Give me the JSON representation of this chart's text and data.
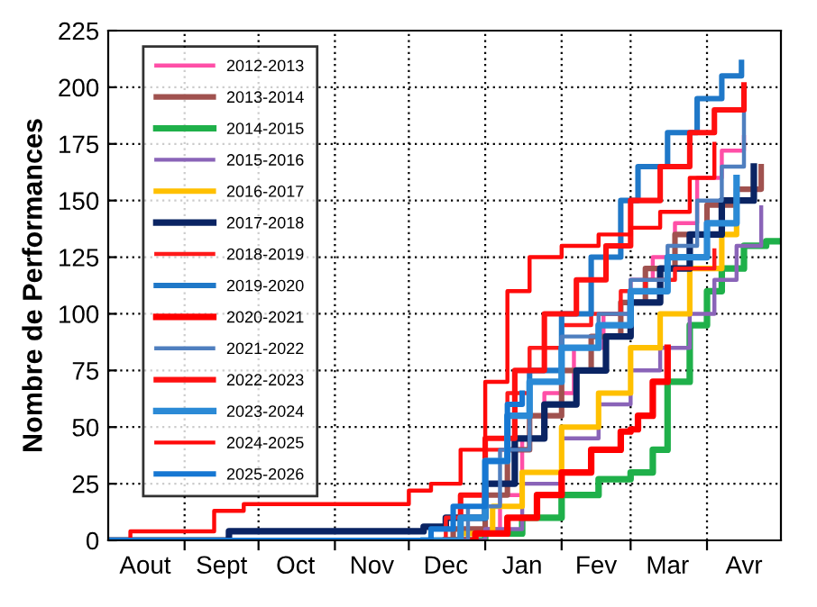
{
  "chart_data": {
    "type": "step",
    "ylabel": "Nombre de Performances",
    "xlim": [
      "2024-08-01",
      "2025-05-01"
    ],
    "ylim": [
      0,
      225
    ],
    "yticks": [
      0,
      25,
      50,
      75,
      100,
      125,
      150,
      175,
      200,
      225
    ],
    "xticks": [
      {
        "value": "2024-08-16",
        "label": "Aout"
      },
      {
        "value": "2024-09-16",
        "label": "Sept"
      },
      {
        "value": "2024-10-16",
        "label": "Oct"
      },
      {
        "value": "2024-11-16",
        "label": "Nov"
      },
      {
        "value": "2024-12-16",
        "label": "Dec"
      },
      {
        "value": "2025-01-16",
        "label": "Jan"
      },
      {
        "value": "2025-02-15",
        "label": "Fev"
      },
      {
        "value": "2025-03-16",
        "label": "Mar"
      },
      {
        "value": "2025-04-16",
        "label": "Avr"
      },
      {
        "value": "2024-09-01",
        "label": null
      },
      {
        "value": "2024-10-01",
        "label": null
      },
      {
        "value": "2024-11-01",
        "label": null
      },
      {
        "value": "2024-12-01",
        "label": null
      },
      {
        "value": "2025-01-01",
        "label": null
      },
      {
        "value": "2025-02-01",
        "label": null
      },
      {
        "value": "2025-03-01",
        "label": null
      },
      {
        "value": "2025-04-01",
        "label": null
      }
    ],
    "grid": true,
    "legend": "top left",
    "line_style": "solid",
    "series": [
      {
        "name": "2012-2013",
        "color": "#ff4fa7",
        "x": [
          "2024-12-10",
          "2024-12-25",
          "2025-01-07",
          "2025-01-16",
          "2025-01-25",
          "2025-02-06",
          "2025-02-18",
          "2025-03-01",
          "2025-03-10",
          "2025-03-19",
          "2025-03-28",
          "2025-04-07",
          "2025-04-16"
        ],
        "values": [
          0,
          5,
          20,
          45,
          65,
          85,
          100,
          115,
          125,
          140,
          160,
          172,
          178
        ]
      },
      {
        "name": "2013-2014",
        "color": "#a0524f",
        "x": [
          "2024-12-07",
          "2024-12-19",
          "2025-01-01",
          "2025-01-10",
          "2025-01-19",
          "2025-02-01",
          "2025-02-13",
          "2025-02-25",
          "2025-03-07",
          "2025-03-19",
          "2025-04-01",
          "2025-04-13",
          "2025-04-23"
        ],
        "values": [
          0,
          5,
          20,
          40,
          55,
          75,
          90,
          105,
          120,
          135,
          148,
          155,
          165
        ]
      },
      {
        "name": "2014-2015",
        "color": "#1fb04a",
        "x": [
          "2024-12-16",
          "2025-01-01",
          "2025-01-16",
          "2025-02-01",
          "2025-02-16",
          "2025-03-01",
          "2025-03-10",
          "2025-03-16",
          "2025-03-25",
          "2025-04-01",
          "2025-04-07",
          "2025-04-16",
          "2025-04-25",
          "2025-04-30"
        ],
        "values": [
          0,
          3,
          10,
          20,
          27,
          30,
          40,
          70,
          95,
          110,
          120,
          130,
          132,
          132
        ]
      },
      {
        "name": "2015-2016",
        "color": "#8a64b8",
        "x": [
          "2024-12-13",
          "2025-01-01",
          "2025-01-16",
          "2025-02-01",
          "2025-02-16",
          "2025-03-01",
          "2025-03-13",
          "2025-03-25",
          "2025-04-04",
          "2025-04-13",
          "2025-04-23"
        ],
        "values": [
          0,
          5,
          25,
          45,
          60,
          75,
          85,
          100,
          115,
          130,
          147
        ]
      },
      {
        "name": "2016-2017",
        "color": "#ffc000",
        "x": [
          "2024-12-10",
          "2024-12-22",
          "2025-01-04",
          "2025-01-16",
          "2025-02-01",
          "2025-02-16",
          "2025-03-01",
          "2025-03-13",
          "2025-03-25",
          "2025-04-07",
          "2025-04-13",
          "2025-04-20"
        ],
        "values": [
          0,
          3,
          15,
          30,
          50,
          65,
          85,
          100,
          120,
          135,
          150,
          159
        ]
      },
      {
        "name": "2017-2018",
        "color": "#0a2463",
        "x": [
          "2024-08-01",
          "2024-09-19",
          "2024-12-07",
          "2024-12-16",
          "2025-01-01",
          "2025-01-13",
          "2025-01-25",
          "2025-02-07",
          "2025-02-19",
          "2025-03-01",
          "2025-03-13",
          "2025-03-25",
          "2025-04-07",
          "2025-04-20"
        ],
        "values": [
          0,
          4,
          6,
          10,
          25,
          45,
          60,
          75,
          90,
          105,
          120,
          135,
          150,
          165
        ]
      },
      {
        "name": "2018-2019",
        "color": "#ff1a1a",
        "x": [
          "2024-12-01",
          "2024-12-16",
          "2025-01-01",
          "2025-01-10",
          "2025-01-19",
          "2025-02-01",
          "2025-02-13",
          "2025-02-25",
          "2025-03-07",
          "2025-03-19",
          "2025-04-04"
        ],
        "values": [
          0,
          10,
          40,
          65,
          85,
          95,
          100,
          110,
          115,
          120,
          128
        ]
      },
      {
        "name": "2019-2020",
        "color": "#1f78c8",
        "x": [
          "2024-12-07",
          "2024-12-22",
          "2025-01-01",
          "2025-01-10",
          "2025-01-19",
          "2025-02-01",
          "2025-02-13",
          "2025-02-25",
          "2025-03-04",
          "2025-03-16",
          "2025-03-28",
          "2025-04-07",
          "2025-04-15"
        ],
        "values": [
          0,
          10,
          35,
          55,
          75,
          100,
          125,
          150,
          165,
          180,
          195,
          205,
          211
        ]
      },
      {
        "name": "2020-2021",
        "color": "#ff0000",
        "x": [
          "2024-12-16",
          "2024-12-28",
          "2025-01-10",
          "2025-01-22",
          "2025-02-01",
          "2025-02-13",
          "2025-02-25",
          "2025-03-01",
          "2025-03-04",
          "2025-03-10",
          "2025-03-16"
        ],
        "values": [
          0,
          3,
          10,
          20,
          30,
          40,
          48,
          49,
          55,
          70,
          85
        ]
      },
      {
        "name": "2021-2022",
        "color": "#4f7fbf",
        "x": [
          "2024-12-10",
          "2024-12-25",
          "2025-01-07",
          "2025-01-19",
          "2025-02-01",
          "2025-02-16",
          "2025-03-01",
          "2025-03-16",
          "2025-03-28",
          "2025-04-07",
          "2025-04-16"
        ],
        "values": [
          0,
          15,
          40,
          70,
          90,
          100,
          115,
          130,
          150,
          165,
          189
        ]
      },
      {
        "name": "2022-2023",
        "color": "#ff1010",
        "x": [
          "2024-12-07",
          "2024-12-22",
          "2025-01-01",
          "2025-01-13",
          "2025-01-25",
          "2025-02-07",
          "2025-02-19",
          "2025-03-01",
          "2025-03-13",
          "2025-03-25",
          "2025-04-04",
          "2025-04-16"
        ],
        "values": [
          0,
          20,
          45,
          75,
          100,
          115,
          130,
          150,
          165,
          180,
          190,
          201
        ]
      },
      {
        "name": "2023-2024",
        "color": "#2b8ad6",
        "x": [
          "2024-12-07",
          "2024-12-22",
          "2025-01-01",
          "2025-01-10",
          "2025-01-19",
          "2025-02-01",
          "2025-02-16",
          "2025-03-01",
          "2025-03-16",
          "2025-04-01",
          "2025-04-13"
        ],
        "values": [
          0,
          10,
          35,
          55,
          70,
          85,
          95,
          110,
          125,
          140,
          160
        ]
      },
      {
        "name": "2024-2025",
        "color": "#ff0a0a",
        "x": [
          "2024-08-01",
          "2024-08-10",
          "2024-09-13",
          "2024-09-25",
          "2024-11-22",
          "2024-12-01",
          "2024-12-10",
          "2024-12-22",
          "2025-01-01",
          "2025-01-10",
          "2025-01-19",
          "2025-02-01",
          "2025-02-16",
          "2025-03-01",
          "2025-03-13",
          "2025-03-25",
          "2025-04-04"
        ],
        "values": [
          0,
          4,
          13,
          16,
          16,
          22,
          25,
          40,
          70,
          110,
          125,
          130,
          135,
          138,
          145,
          160,
          175
        ]
      },
      {
        "name": "2025-2026",
        "color": "#1677d2",
        "x": [
          "2024-08-01",
          "2024-12-01",
          "2024-12-10",
          "2024-12-19",
          "2025-01-01",
          "2025-01-10",
          "2025-01-16"
        ],
        "values": [
          0,
          0,
          5,
          15,
          35,
          60,
          65
        ]
      }
    ]
  }
}
